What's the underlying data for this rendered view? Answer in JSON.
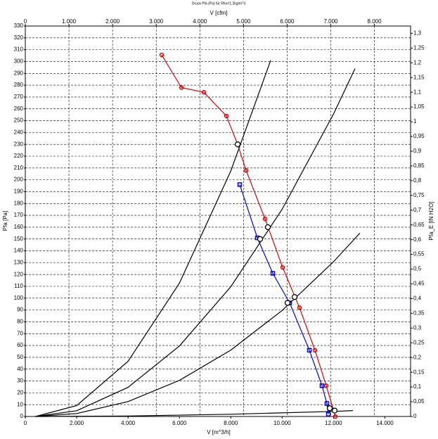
{
  "chart_data": {
    "type": "line",
    "title": "Druck Pfa (Pa) für Rho=1,2kg/m^3",
    "x_label": "V [m^3/h]",
    "x2_label": "V [cfm]",
    "y_label": "Pfa [Pa]",
    "y2_label": "Pfa_E [IN H2O]",
    "xlim": [
      0,
      15000
    ],
    "xticks": [
      0,
      {
        "value": 2000,
        "label": "2.000"
      },
      {
        "value": 4000,
        "label": "4.000"
      },
      {
        "value": 6000,
        "label": "6.000"
      },
      {
        "value": 8000,
        "label": "8.000"
      },
      {
        "value": 10000,
        "label": "10.000"
      },
      {
        "value": 12000,
        "label": "12.000"
      },
      {
        "value": 14000,
        "label": "14.000"
      }
    ],
    "x2lim": [
      0,
      8829
    ],
    "x2ticks": [
      0,
      {
        "value": 1000,
        "label": "1.000"
      },
      {
        "value": 2000,
        "label": "2.000"
      },
      {
        "value": 3000,
        "label": "3.000"
      },
      {
        "value": 4000,
        "label": "4.000"
      },
      {
        "value": 5000,
        "label": "5.000"
      },
      {
        "value": 6000,
        "label": "6.000"
      },
      {
        "value": 7000,
        "label": "7.000"
      },
      {
        "value": 8000,
        "label": "8.000"
      }
    ],
    "ylim": [
      0,
      330
    ],
    "yticks": [
      0,
      10,
      20,
      30,
      40,
      50,
      60,
      70,
      80,
      90,
      100,
      110,
      120,
      130,
      140,
      150,
      160,
      170,
      180,
      190,
      200,
      210,
      220,
      230,
      240,
      250,
      260,
      270,
      280,
      290,
      300,
      310,
      320,
      330
    ],
    "y2lim": [
      0,
      1.3248
    ],
    "y2ticks": [
      0,
      {
        "value": 0.05,
        "label": "0,05"
      },
      {
        "value": 0.1,
        "label": "0,1"
      },
      {
        "value": 0.15,
        "label": "0,15"
      },
      {
        "value": 0.2,
        "label": "0,2"
      },
      {
        "value": 0.25,
        "label": "0,25"
      },
      {
        "value": 0.3,
        "label": "0,3"
      },
      {
        "value": 0.35,
        "label": "0,35"
      },
      {
        "value": 0.4,
        "label": "0,4"
      },
      {
        "value": 0.45,
        "label": "0,45"
      },
      {
        "value": 0.5,
        "label": "0,5"
      },
      {
        "value": 0.55,
        "label": "0,55"
      },
      {
        "value": 0.6,
        "label": "0,6"
      },
      {
        "value": 0.65,
        "label": "0,65"
      },
      {
        "value": 0.7,
        "label": "0,7"
      },
      {
        "value": 0.75,
        "label": "0,75"
      },
      {
        "value": 0.8,
        "label": "0,8"
      },
      {
        "value": 0.85,
        "label": "0,85"
      },
      {
        "value": 0.9,
        "label": "0,9"
      },
      {
        "value": 0.95,
        "label": "0,95"
      },
      {
        "value": 1,
        "label": "1"
      },
      {
        "value": 1.05,
        "label": "1,05"
      },
      {
        "value": 1.1,
        "label": "1,1"
      },
      {
        "value": 1.15,
        "label": "1,15"
      },
      {
        "value": 1.2,
        "label": "1,2"
      },
      {
        "value": 1.25,
        "label": "1,25"
      },
      {
        "value": 1.3,
        "label": "1,3"
      }
    ],
    "grid": true,
    "series": [
      {
        "color": "#000000",
        "marker": "none",
        "x": [
          400,
          2000,
          4000,
          6000,
          8000,
          9553
        ],
        "values": [
          0,
          9.2,
          46.6,
          112.7,
          207.5,
          301
        ]
      },
      {
        "color": "#000000",
        "marker": "none",
        "x": [
          400,
          2000,
          4000,
          6000,
          8000,
          10000,
          12000,
          12837
        ],
        "values": [
          0,
          4.9,
          24.6,
          59.6,
          109.7,
          175.1,
          255.7,
          294
        ]
      },
      {
        "color": "#000000",
        "marker": "none",
        "x": [
          400,
          2000,
          4000,
          6000,
          8000,
          10000,
          12000,
          13029
        ],
        "values": [
          0,
          2.5,
          12.6,
          30.5,
          56.1,
          89.6,
          130.8,
          155
        ]
      },
      {
        "color": "#000000",
        "marker": "none",
        "x": [
          400,
          4000,
          8000,
          12000,
          12755
        ],
        "values": [
          0,
          0.4,
          1.9,
          4.3,
          5
        ]
      },
      {
        "color": "#e00000",
        "marker": "circle",
        "x": [
          5310,
          6077,
          6953,
          7829,
          8267,
          8595,
          9334,
          10018,
          10675,
          11277,
          11715,
          12071
        ],
        "values": [
          305.6,
          278,
          274,
          254,
          230,
          208,
          167,
          126,
          92,
          56,
          26,
          0
        ]
      },
      {
        "color": "#0000e0",
        "marker": "square",
        "x": [
          8349,
          9033,
          9635,
          10292,
          11058,
          11551,
          11743,
          11798
        ],
        "values": [
          196,
          151,
          121,
          96,
          56,
          26,
          11,
          2
        ]
      },
      {
        "color": "#000000",
        "marker": "open",
        "x": [
          8267,
          9444,
          9143,
          10484,
          10210,
          11853,
          12044
        ],
        "values": [
          230,
          160,
          150,
          101,
          96,
          7,
          5
        ]
      }
    ]
  }
}
